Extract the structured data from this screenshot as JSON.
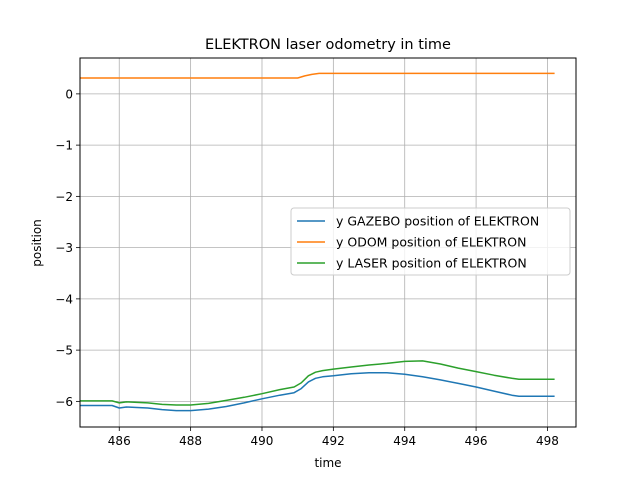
{
  "chart_data": {
    "type": "line",
    "title": "ELEKTRON laser odometry in time",
    "xlabel": "time",
    "ylabel": "position",
    "xlim": [
      484.9,
      498.8
    ],
    "ylim": [
      -6.5,
      0.7
    ],
    "grid": true,
    "legend_position": "center-right",
    "x_ticks": [
      486,
      488,
      490,
      492,
      494,
      496,
      498
    ],
    "x_tick_labels": [
      "486",
      "488",
      "490",
      "492",
      "494",
      "496",
      "498"
    ],
    "y_ticks": [
      0,
      -1,
      -2,
      -3,
      -4,
      -5,
      -6
    ],
    "y_tick_labels": [
      "0",
      "−1",
      "−2",
      "−3",
      "−4",
      "−5",
      "−6"
    ],
    "series": [
      {
        "name": "y GAZEBO position of ELEKTRON",
        "color": "#1f77b4",
        "x": [
          484.9,
          485.8,
          486.0,
          486.2,
          486.5,
          486.8,
          487.2,
          487.6,
          488.0,
          488.5,
          489.0,
          489.5,
          490.0,
          490.5,
          490.9,
          491.1,
          491.3,
          491.5,
          491.7,
          492.0,
          492.5,
          493.0,
          493.5,
          494.0,
          494.5,
          495.0,
          495.5,
          496.0,
          496.5,
          497.0,
          497.2,
          497.5,
          498.0,
          498.2
        ],
        "y": [
          -6.08,
          -6.08,
          -6.13,
          -6.11,
          -6.12,
          -6.13,
          -6.16,
          -6.18,
          -6.18,
          -6.15,
          -6.1,
          -6.03,
          -5.95,
          -5.88,
          -5.83,
          -5.75,
          -5.62,
          -5.55,
          -5.52,
          -5.5,
          -5.46,
          -5.44,
          -5.44,
          -5.47,
          -5.52,
          -5.58,
          -5.65,
          -5.72,
          -5.8,
          -5.88,
          -5.9,
          -5.9,
          -5.9,
          -5.9
        ]
      },
      {
        "name": "y ODOM position of ELEKTRON",
        "color": "#ff7f0e",
        "x": [
          484.9,
          486.0,
          488.0,
          490.0,
          491.0,
          491.2,
          491.4,
          491.6,
          492.0,
          494.0,
          496.0,
          498.2
        ],
        "y": [
          0.31,
          0.31,
          0.31,
          0.31,
          0.31,
          0.35,
          0.38,
          0.4,
          0.4,
          0.4,
          0.4,
          0.4
        ]
      },
      {
        "name": "y LASER position of ELEKTRON",
        "color": "#2ca02c",
        "x": [
          484.9,
          485.8,
          486.0,
          486.2,
          486.5,
          486.8,
          487.2,
          487.6,
          488.0,
          488.5,
          489.0,
          489.5,
          490.0,
          490.5,
          490.9,
          491.1,
          491.3,
          491.5,
          491.7,
          492.0,
          492.5,
          493.0,
          493.5,
          494.0,
          494.5,
          495.0,
          495.5,
          496.0,
          496.5,
          497.0,
          497.2,
          497.5,
          498.0,
          498.2
        ],
        "y": [
          -5.99,
          -5.99,
          -6.03,
          -6.01,
          -6.02,
          -6.03,
          -6.06,
          -6.07,
          -6.07,
          -6.04,
          -5.98,
          -5.92,
          -5.85,
          -5.77,
          -5.72,
          -5.64,
          -5.5,
          -5.43,
          -5.4,
          -5.37,
          -5.33,
          -5.29,
          -5.26,
          -5.22,
          -5.21,
          -5.27,
          -5.35,
          -5.42,
          -5.49,
          -5.55,
          -5.57,
          -5.57,
          -5.57,
          -5.57
        ]
      }
    ]
  }
}
